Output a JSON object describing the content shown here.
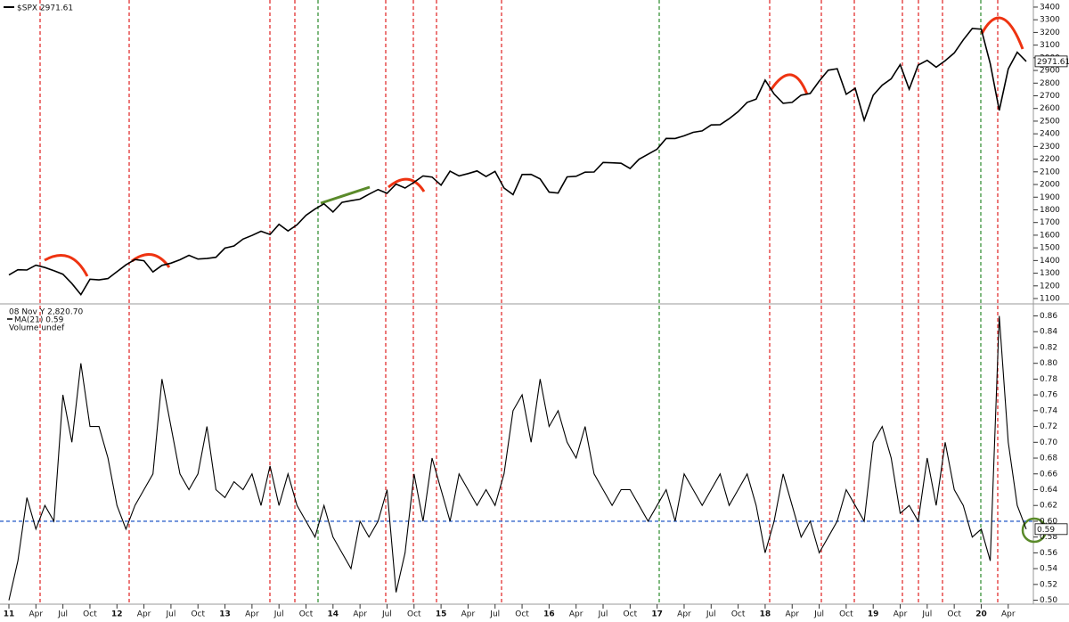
{
  "chart_data": [
    {
      "type": "line",
      "scale": "linear",
      "series": [
        {
          "name": "$SPX 2971.61",
          "color": "#000000",
          "values": [
            1286,
            1327,
            1325,
            1363,
            1345,
            1320,
            1292,
            1218,
            1131,
            1253,
            1247,
            1258,
            1312,
            1366,
            1408,
            1398,
            1310,
            1362,
            1379,
            1406,
            1441,
            1412,
            1416,
            1426,
            1498,
            1515,
            1569,
            1598,
            1631,
            1606,
            1686,
            1633,
            1682,
            1757,
            1806,
            1848,
            1783,
            1859,
            1872,
            1884,
            1924,
            1960,
            1931,
            2003,
            1972,
            2018,
            2068,
            2059,
            1995,
            2105,
            2068,
            2086,
            2107,
            2063,
            2104,
            1972,
            1920,
            2079,
            2080,
            2044,
            1940,
            1932,
            2060,
            2065,
            2097,
            2099,
            2174,
            2171,
            2168,
            2126,
            2199,
            2239,
            2279,
            2364,
            2363,
            2384,
            2412,
            2423,
            2470,
            2472,
            2519,
            2575,
            2648,
            2674,
            2824,
            2714,
            2641,
            2648,
            2705,
            2718,
            2816,
            2902,
            2914,
            2712,
            2760,
            2507,
            2704,
            2784,
            2834,
            2946,
            2752,
            2942,
            2980,
            2926,
            2977,
            3038,
            3141,
            3231,
            3226,
            2954,
            2585,
            2912,
            3044,
            2971.61
          ]
        }
      ],
      "last_value_label": "2971.61",
      "ylim": [
        1065,
        3456
      ],
      "yticks": [
        1100,
        1200,
        1300,
        1400,
        1500,
        1600,
        1700,
        1800,
        1900,
        2000,
        2100,
        2200,
        2300,
        2400,
        2500,
        2600,
        2700,
        2800,
        2900,
        3000,
        3100,
        3200,
        3300,
        3400
      ]
    },
    {
      "type": "line",
      "scale": "linear",
      "header_lines": [
        "08 Nov Y 2,820.70",
        "Volume undef"
      ],
      "categories": [
        "11",
        null,
        null,
        "Apr",
        null,
        null,
        "Jul",
        null,
        null,
        "Oct",
        null,
        null,
        "12",
        null,
        null,
        "Apr",
        null,
        null,
        "Jul",
        null,
        null,
        "Oct",
        null,
        null,
        "13",
        null,
        null,
        "Apr",
        null,
        null,
        "Jul",
        null,
        null,
        "Oct",
        null,
        null,
        "14",
        null,
        null,
        "Apr",
        null,
        null,
        "Jul",
        null,
        null,
        "Oct",
        null,
        null,
        "15",
        null,
        null,
        "Apr",
        null,
        null,
        "Jul",
        null,
        null,
        "Oct",
        null,
        null,
        "16",
        null,
        null,
        "Apr",
        null,
        null,
        "Jul",
        null,
        null,
        "Oct",
        null,
        null,
        "17",
        null,
        null,
        "Apr",
        null,
        null,
        "Jul",
        null,
        null,
        "Oct",
        null,
        null,
        "18",
        null,
        null,
        "Apr",
        null,
        null,
        "Jul",
        null,
        null,
        "Oct",
        null,
        null,
        "19",
        null,
        null,
        "Apr",
        null,
        null,
        "Jul",
        null,
        null,
        "Oct",
        null,
        null,
        "20",
        null,
        null,
        "Apr",
        null,
        null
      ],
      "series": [
        {
          "name": "MA(21) 0.59",
          "color": "#000000",
          "values": [
            0.5,
            0.55,
            0.63,
            0.59,
            0.62,
            0.6,
            0.76,
            0.7,
            0.8,
            0.72,
            0.72,
            0.68,
            0.62,
            0.59,
            0.62,
            0.64,
            0.66,
            0.78,
            0.72,
            0.66,
            0.64,
            0.66,
            0.72,
            0.64,
            0.63,
            0.65,
            0.64,
            0.66,
            0.62,
            0.67,
            0.62,
            0.66,
            0.62,
            0.6,
            0.58,
            0.62,
            0.58,
            0.56,
            0.54,
            0.6,
            0.58,
            0.6,
            0.64,
            0.51,
            0.56,
            0.66,
            0.6,
            0.68,
            0.64,
            0.6,
            0.66,
            0.64,
            0.62,
            0.64,
            0.62,
            0.66,
            0.74,
            0.76,
            0.7,
            0.78,
            0.72,
            0.74,
            0.7,
            0.68,
            0.72,
            0.66,
            0.64,
            0.62,
            0.64,
            0.64,
            0.62,
            0.6,
            0.62,
            0.64,
            0.6,
            0.66,
            0.64,
            0.62,
            0.64,
            0.66,
            0.62,
            0.64,
            0.66,
            0.62,
            0.56,
            0.6,
            0.66,
            0.62,
            0.58,
            0.6,
            0.56,
            0.58,
            0.6,
            0.64,
            0.62,
            0.6,
            0.7,
            0.72,
            0.68,
            0.61,
            0.62,
            0.6,
            0.68,
            0.62,
            0.7,
            0.64,
            0.62,
            0.58,
            0.59,
            0.55,
            0.86,
            0.7,
            0.62,
            0.59
          ]
        }
      ],
      "last_value_label": "0.59",
      "reference_line": {
        "value": 0.6,
        "color": "#3366cc"
      },
      "ylim": [
        0.495,
        0.873
      ],
      "yticks": [
        {
          "value": 0.5,
          "label": "0.50"
        },
        0.52,
        0.54,
        0.56,
        0.58,
        {
          "value": 0.6,
          "label": "0.60"
        },
        0.62,
        0.64,
        0.66,
        0.68,
        {
          "value": 0.7,
          "label": "0.70"
        },
        0.72,
        0.74,
        0.76,
        0.78,
        {
          "value": 0.8,
          "label": "0.80"
        },
        0.82,
        0.84,
        0.86
      ]
    }
  ]
}
